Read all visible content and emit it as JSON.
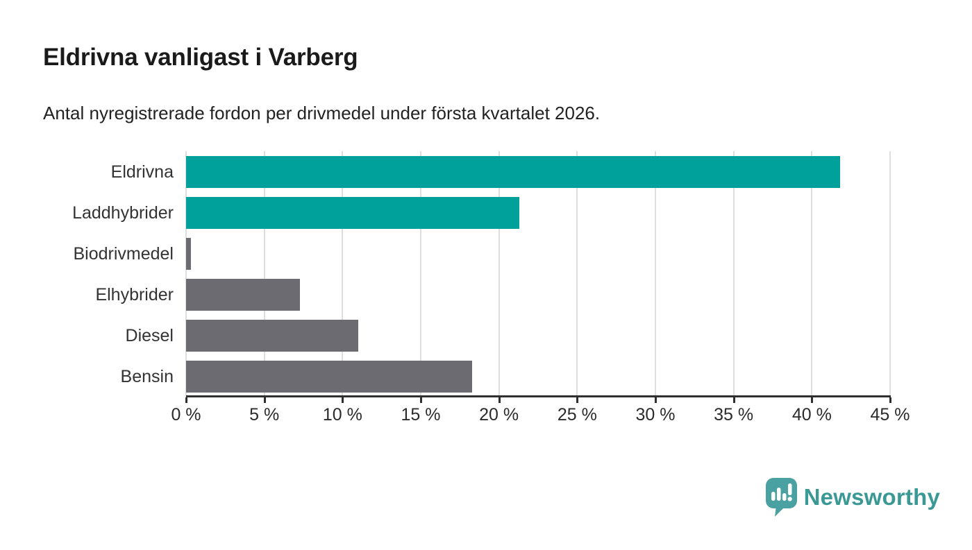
{
  "header": {
    "title": "Eldrivna vanligast i Varberg",
    "subtitle": "Antal nyregistrerade fordon per drivmedel under första kvartalet 2026."
  },
  "chart_data": {
    "type": "bar",
    "orientation": "horizontal",
    "title": "Eldrivna vanligast i Varberg",
    "subtitle": "Antal nyregistrerade fordon per drivmedel under första kvartalet 2026.",
    "categories": [
      "Eldrivna",
      "Laddhybrider",
      "Biodrivmedel",
      "Elhybrider",
      "Diesel",
      "Bensin"
    ],
    "values": [
      41.8,
      21.3,
      0.3,
      7.3,
      11,
      18.3
    ],
    "unit": "%",
    "xlim": [
      0,
      45
    ],
    "x_ticks": [
      0,
      5,
      10,
      15,
      20,
      25,
      30,
      35,
      40,
      45
    ],
    "x_tick_labels": [
      "0 %",
      "5 %",
      "10 %",
      "15 %",
      "20 %",
      "25 %",
      "30 %",
      "35 %",
      "40 %",
      "45 %"
    ],
    "grid": true,
    "legend": false,
    "bar_colors": [
      "#00a19a",
      "#00a19a",
      "#6c6b71",
      "#6c6b71",
      "#6c6b71",
      "#6c6b71"
    ],
    "highlight_color": "#00a19a",
    "base_color": "#6c6b71"
  },
  "branding": {
    "logo_text": "Newsworthy",
    "logo_icon": "newsworthy-speech-bubble-bar-chart-icon",
    "brand_color": "#3a9995",
    "logo_fill": "#4aa1a1"
  },
  "colors": {
    "background": "#ffffff",
    "gridline": "#dedede",
    "axis": "#2f2f2f",
    "label_text": "#333333",
    "title_text": "#1a1a1a"
  }
}
